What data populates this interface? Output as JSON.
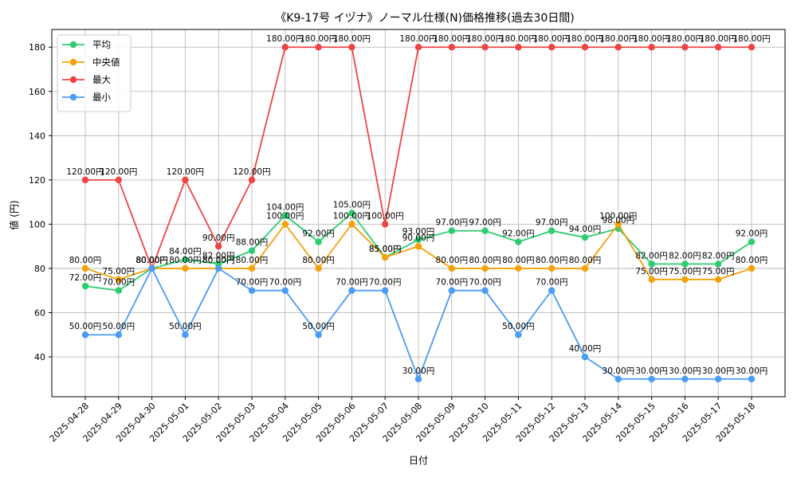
{
  "chart_data": {
    "type": "line",
    "title": "《K9-17号 イヅナ》ノーマル仕様(N)価格推移(過去30日間)",
    "xlabel": "日付",
    "ylabel": "値 (円)",
    "ylim": [
      22,
      188
    ],
    "yticks": [
      40,
      60,
      80,
      100,
      120,
      140,
      160,
      180
    ],
    "grid": true,
    "legend_position": "top-left",
    "label_suffix": "円",
    "categories": [
      "2025-04-28",
      "2025-04-29",
      "2025-04-30",
      "2025-05-01",
      "2025-05-02",
      "2025-05-03",
      "2025-05-04",
      "2025-05-05",
      "2025-05-06",
      "2025-05-07",
      "2025-05-08",
      "2025-05-09",
      "2025-05-10",
      "2025-05-11",
      "2025-05-12",
      "2025-05-13",
      "2025-05-14",
      "2025-05-15",
      "2025-05-16",
      "2025-05-17",
      "2025-05-18"
    ],
    "series": [
      {
        "name": "平均",
        "color": "#2ecc71",
        "values": [
          72,
          70,
          80,
          84,
          82,
          88,
          104,
          92,
          105,
          85,
          93,
          97,
          97,
          92,
          97,
          94,
          98,
          82,
          82,
          82,
          92
        ]
      },
      {
        "name": "中央値",
        "color": "#f5a10a",
        "values": [
          80,
          75,
          80,
          80,
          80,
          80,
          100,
          80,
          100,
          85,
          90,
          80,
          80,
          80,
          80,
          80,
          100,
          75,
          75,
          75,
          80
        ]
      },
      {
        "name": "最大",
        "color": "#ef4444",
        "values": [
          120,
          120,
          80,
          120,
          90,
          120,
          180,
          180,
          180,
          100,
          180,
          180,
          180,
          180,
          180,
          180,
          180,
          180,
          180,
          180,
          180
        ]
      },
      {
        "name": "最小",
        "color": "#4b9cf5",
        "values": [
          50,
          50,
          80,
          50,
          80,
          70,
          70,
          50,
          70,
          70,
          30,
          70,
          70,
          50,
          70,
          40,
          30,
          30,
          30,
          30,
          30
        ]
      }
    ]
  }
}
